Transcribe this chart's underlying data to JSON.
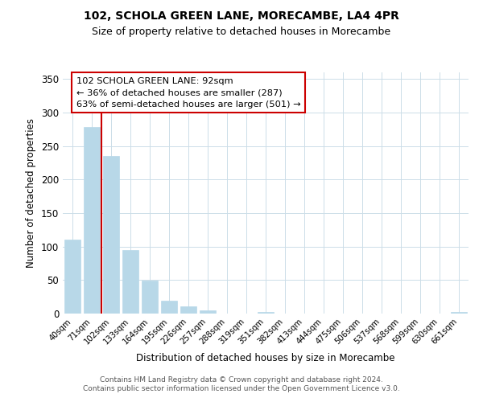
{
  "title": "102, SCHOLA GREEN LANE, MORECAMBE, LA4 4PR",
  "subtitle": "Size of property relative to detached houses in Morecambe",
  "xlabel": "Distribution of detached houses by size in Morecambe",
  "ylabel": "Number of detached properties",
  "bar_labels": [
    "40sqm",
    "71sqm",
    "102sqm",
    "133sqm",
    "164sqm",
    "195sqm",
    "226sqm",
    "257sqm",
    "288sqm",
    "319sqm",
    "351sqm",
    "382sqm",
    "413sqm",
    "444sqm",
    "475sqm",
    "506sqm",
    "537sqm",
    "568sqm",
    "599sqm",
    "630sqm",
    "661sqm"
  ],
  "bar_values": [
    111,
    278,
    235,
    95,
    49,
    19,
    11,
    5,
    0,
    0,
    2,
    0,
    0,
    0,
    0,
    0,
    0,
    0,
    0,
    0,
    2
  ],
  "bar_color": "#b8d8e8",
  "marker_index": 2,
  "marker_line_color": "#cc0000",
  "ylim": [
    0,
    360
  ],
  "yticks": [
    0,
    50,
    100,
    150,
    200,
    250,
    300,
    350
  ],
  "annotation_lines": [
    "102 SCHOLA GREEN LANE: 92sqm",
    "← 36% of detached houses are smaller (287)",
    "63% of semi-detached houses are larger (501) →"
  ],
  "annotation_box_color": "#ffffff",
  "annotation_box_edge": "#cc0000",
  "footer_line1": "Contains HM Land Registry data © Crown copyright and database right 2024.",
  "footer_line2": "Contains public sector information licensed under the Open Government Licence v3.0.",
  "background_color": "#ffffff",
  "grid_color": "#ccdde8"
}
